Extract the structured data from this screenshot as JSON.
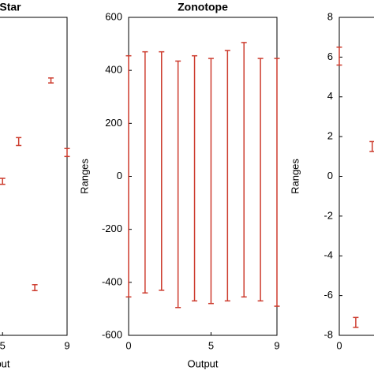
{
  "chart_data": [
    {
      "type": "errorbar",
      "title": "Star",
      "xlabel": "Output",
      "color": "#cd3c2e",
      "x": [
        5,
        6,
        7,
        8,
        9
      ],
      "upper": [
        -0.1,
        1.95,
        -5.45,
        4.95,
        1.4
      ],
      "lower": [
        -0.4,
        1.55,
        -5.75,
        4.7,
        1.0
      ],
      "xlim": [
        0,
        9
      ],
      "ylim": [
        -8,
        8
      ],
      "xticks": [
        5,
        9
      ]
    },
    {
      "type": "errorbar",
      "title": "Zonotope",
      "xlabel": "Output",
      "ylabel": "Ranges",
      "color": "#cd3c2e",
      "x": [
        0,
        1,
        2,
        3,
        4,
        5,
        6,
        7,
        8,
        9
      ],
      "upper": [
        455,
        470,
        470,
        435,
        455,
        445,
        475,
        505,
        445,
        445
      ],
      "lower": [
        -455,
        -440,
        -430,
        -495,
        -470,
        -480,
        -470,
        -455,
        -470,
        -490
      ],
      "xlim": [
        0,
        9
      ],
      "ylim": [
        -600,
        600
      ],
      "xticks": [
        0,
        5,
        9
      ],
      "yticks": [
        -600,
        -400,
        -200,
        0,
        200,
        400,
        600
      ]
    },
    {
      "type": "errorbar",
      "ylabel": "Ranges",
      "color": "#cd3c2e",
      "x": [
        0,
        1,
        2
      ],
      "upper": [
        6.5,
        -7.1,
        1.75
      ],
      "lower": [
        5.6,
        -7.6,
        1.25
      ],
      "xlim": [
        0,
        9
      ],
      "ylim": [
        -8,
        8
      ],
      "xticks": [
        0
      ],
      "yticks": [
        -8,
        -6,
        -4,
        -2,
        0,
        2,
        4,
        6,
        8
      ]
    }
  ]
}
